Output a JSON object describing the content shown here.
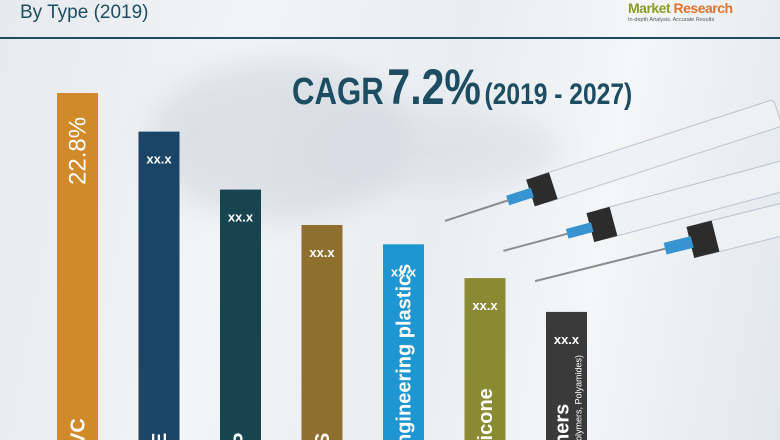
{
  "header": {
    "subtitle": "By Type (2019)",
    "cagr_label": "CAGR",
    "cagr_value": "7.2%",
    "cagr_period": "(2019 - 2027)"
  },
  "logo": {
    "word1": "Market",
    "word2": "Research",
    "tagline": "In-depth Analysis. Accurate Results"
  },
  "chart_data": {
    "type": "bar",
    "title": "",
    "categories": [
      "VC",
      "E",
      "P",
      "S",
      "ngineering plastics",
      "licone",
      "hers"
    ],
    "category_sublabels": [
      "",
      "",
      "",
      "",
      "",
      "",
      "polymers, Polyamides)"
    ],
    "value_labels": [
      "22.8%",
      "xx.x",
      "xx.x",
      "xx.x",
      "xx.x",
      "xx.x",
      "xx.x"
    ],
    "values": [
      22.8,
      20.4,
      16.8,
      14.6,
      13.4,
      11.3,
      9.2
    ],
    "colors": [
      "#d08a2a",
      "#1b4566",
      "#17444f",
      "#8e6f2d",
      "#1e96d2",
      "#8a8a32",
      "#3a3a3a"
    ],
    "unit": "%"
  }
}
